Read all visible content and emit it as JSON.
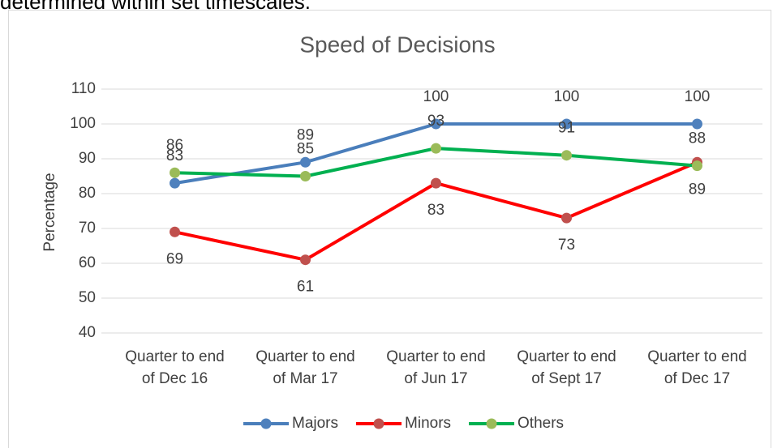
{
  "caption": "determined within set timescales.",
  "chart_data": {
    "type": "line",
    "title": "Speed of Decisions",
    "ylabel": "Percentage",
    "categories": [
      "Quarter to end of Dec 16",
      "Quarter to end of Mar 17",
      "Quarter to end of Jun 17",
      "Quarter to end of Sept 17",
      "Quarter to end of Dec 17"
    ],
    "series": [
      {
        "name": "Majors",
        "color": "#4a7ebb",
        "marker_color": "#4f81bd",
        "values": [
          83,
          89,
          100,
          100,
          100
        ]
      },
      {
        "name": "Minors",
        "color": "#ff0000",
        "marker_color": "#c0504d",
        "values": [
          69,
          61,
          83,
          73,
          89
        ]
      },
      {
        "name": "Others",
        "color": "#00b050",
        "marker_color": "#9bbb59",
        "values": [
          86,
          85,
          93,
          91,
          88
        ]
      }
    ],
    "ylim": [
      40,
      110
    ],
    "yticks": [
      40,
      50,
      60,
      70,
      80,
      90,
      100,
      110
    ],
    "grid": true,
    "legend": "bottom"
  }
}
